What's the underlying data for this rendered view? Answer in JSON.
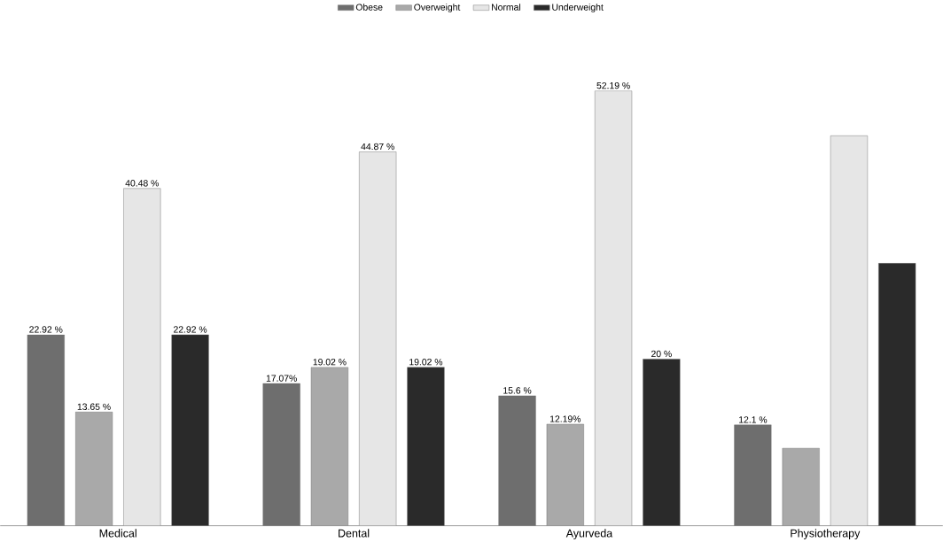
{
  "chart_data": {
    "type": "bar",
    "categories": [
      "Medical",
      "Dental",
      "Ayurveda",
      "Physiotherapy"
    ],
    "legend": "top",
    "series": [
      {
        "name": "Obese",
        "color": "#6e6e6e",
        "values": [
          22.92,
          17.07,
          15.6,
          12.1
        ],
        "value_labels": [
          "22.92 %",
          "17.07%",
          "15.6 %",
          "12.1 %"
        ]
      },
      {
        "name": "Overweight",
        "color": "#a9a9a9",
        "values": [
          13.65,
          19.02,
          12.19,
          9.3
        ],
        "value_labels": [
          "13.65 %",
          "19.02 %",
          "12.19%",
          null
        ]
      },
      {
        "name": "Normal",
        "color": "#e6e6e6",
        "values": [
          40.48,
          44.87,
          52.19,
          46.8
        ],
        "value_labels": [
          "40.48 %",
          "44.87 %",
          "52.19 %",
          null
        ]
      },
      {
        "name": "Underweight",
        "color": "#2a2a2a",
        "values": [
          22.92,
          19.02,
          20,
          31.5
        ],
        "value_labels": [
          "22.92 %",
          "19.02 %",
          "20 %",
          null
        ]
      }
    ]
  }
}
